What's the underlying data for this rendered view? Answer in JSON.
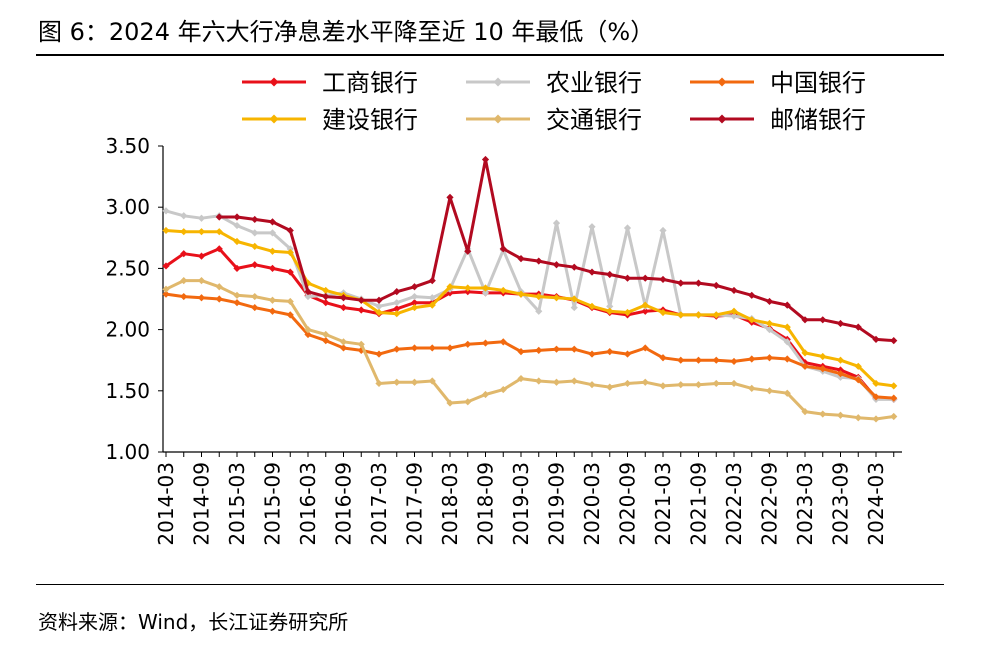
{
  "header": {
    "title": "图 6：2024 年六大行净息差水平降至近 10 年最低（%）"
  },
  "footer": {
    "source": "资料来源：Wind，长江证券研究所"
  },
  "chart_data": {
    "type": "line",
    "title": "2024 年六大行净息差水平降至近 10 年最低（%）",
    "xlabel": "",
    "ylabel": "",
    "ylim": [
      1.0,
      3.5
    ],
    "yticks": [
      "1.00",
      "1.50",
      "2.00",
      "2.50",
      "3.00",
      "3.50"
    ],
    "grid": false,
    "legend_position": "top",
    "x_tick_labels": [
      "2014-03",
      "2014-09",
      "2015-03",
      "2015-09",
      "2016-03",
      "2016-09",
      "2017-03",
      "2017-09",
      "2018-03",
      "2018-09",
      "2019-03",
      "2019-09",
      "2020-03",
      "2020-09",
      "2021-03",
      "2021-09",
      "2022-03",
      "2022-09",
      "2023-03",
      "2023-09",
      "2024-03"
    ],
    "x": [
      "2014-03",
      "2014-06",
      "2014-09",
      "2014-12",
      "2015-03",
      "2015-06",
      "2015-09",
      "2015-12",
      "2016-03",
      "2016-06",
      "2016-09",
      "2016-12",
      "2017-03",
      "2017-06",
      "2017-09",
      "2017-12",
      "2018-03",
      "2018-06",
      "2018-09",
      "2018-12",
      "2019-03",
      "2019-06",
      "2019-09",
      "2019-12",
      "2020-03",
      "2020-06",
      "2020-09",
      "2020-12",
      "2021-03",
      "2021-06",
      "2021-09",
      "2021-12",
      "2022-03",
      "2022-06",
      "2022-09",
      "2022-12",
      "2023-03",
      "2023-06",
      "2023-09",
      "2023-12",
      "2024-03",
      "2024-06"
    ],
    "series": [
      {
        "name": "工商银行",
        "color": "#e8101a",
        "values": [
          2.52,
          2.62,
          2.6,
          2.66,
          2.5,
          2.53,
          2.5,
          2.47,
          2.28,
          2.22,
          2.18,
          2.16,
          2.13,
          2.17,
          2.22,
          2.22,
          2.3,
          2.31,
          2.3,
          2.3,
          2.29,
          2.29,
          2.27,
          2.24,
          2.18,
          2.14,
          2.12,
          2.15,
          2.16,
          2.12,
          2.12,
          2.11,
          2.12,
          2.06,
          2.01,
          1.92,
          1.73,
          1.7,
          1.67,
          1.61,
          1.44,
          1.43
        ]
      },
      {
        "name": "农业银行",
        "color": "#c8c8c8",
        "values": [
          2.97,
          2.93,
          2.91,
          2.93,
          2.85,
          2.79,
          2.79,
          2.66,
          2.27,
          2.28,
          2.3,
          2.25,
          2.19,
          2.22,
          2.27,
          2.26,
          2.33,
          2.66,
          2.3,
          2.65,
          2.31,
          2.15,
          2.87,
          2.18,
          2.84,
          2.19,
          2.83,
          2.19,
          2.81,
          2.12,
          2.12,
          2.12,
          2.11,
          2.09,
          2.0,
          1.9,
          1.7,
          1.66,
          1.61,
          1.6,
          1.43,
          1.43
        ]
      },
      {
        "name": "中国银行",
        "color": "#f2690f",
        "values": [
          2.29,
          2.27,
          2.26,
          2.25,
          2.22,
          2.18,
          2.15,
          2.12,
          1.96,
          1.91,
          1.85,
          1.83,
          1.8,
          1.84,
          1.85,
          1.85,
          1.85,
          1.88,
          1.89,
          1.9,
          1.82,
          1.83,
          1.84,
          1.84,
          1.8,
          1.82,
          1.8,
          1.85,
          1.77,
          1.75,
          1.75,
          1.75,
          1.74,
          1.76,
          1.77,
          1.76,
          1.7,
          1.68,
          1.64,
          1.59,
          1.45,
          1.44
        ]
      },
      {
        "name": "建设银行",
        "color": "#f7b500",
        "values": [
          2.81,
          2.8,
          2.8,
          2.8,
          2.72,
          2.68,
          2.64,
          2.63,
          2.38,
          2.32,
          2.28,
          2.24,
          2.14,
          2.13,
          2.18,
          2.2,
          2.35,
          2.34,
          2.34,
          2.32,
          2.29,
          2.27,
          2.26,
          2.25,
          2.19,
          2.15,
          2.14,
          2.2,
          2.14,
          2.12,
          2.12,
          2.12,
          2.15,
          2.08,
          2.05,
          2.02,
          1.81,
          1.78,
          1.75,
          1.7,
          1.56,
          1.54
        ]
      },
      {
        "name": "交通银行",
        "color": "#e0b86c",
        "values": [
          2.33,
          2.4,
          2.4,
          2.35,
          2.28,
          2.27,
          2.24,
          2.23,
          2.0,
          1.96,
          1.9,
          1.88,
          1.56,
          1.57,
          1.57,
          1.58,
          1.4,
          1.41,
          1.47,
          1.51,
          1.6,
          1.58,
          1.57,
          1.58,
          1.55,
          1.53,
          1.56,
          1.57,
          1.54,
          1.55,
          1.55,
          1.56,
          1.56,
          1.52,
          1.5,
          1.48,
          1.33,
          1.31,
          1.3,
          1.28,
          1.27,
          1.29
        ]
      },
      {
        "name": "邮储银行",
        "color": "#b20a20",
        "values": [
          null,
          null,
          null,
          2.92,
          2.92,
          2.9,
          2.88,
          2.81,
          2.31,
          2.27,
          2.26,
          2.24,
          2.24,
          2.31,
          2.35,
          2.4,
          3.08,
          2.64,
          3.39,
          2.66,
          2.58,
          2.56,
          2.53,
          2.51,
          2.47,
          2.45,
          2.42,
          2.42,
          2.41,
          2.38,
          2.38,
          2.36,
          2.32,
          2.28,
          2.23,
          2.2,
          2.08,
          2.08,
          2.05,
          2.02,
          1.92,
          1.91
        ]
      }
    ]
  }
}
